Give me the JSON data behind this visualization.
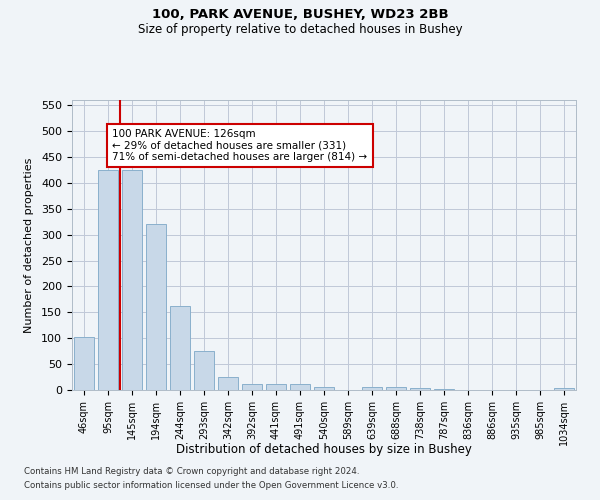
{
  "title1": "100, PARK AVENUE, BUSHEY, WD23 2BB",
  "title2": "Size of property relative to detached houses in Bushey",
  "xlabel": "Distribution of detached houses by size in Bushey",
  "ylabel": "Number of detached properties",
  "categories": [
    "46sqm",
    "95sqm",
    "145sqm",
    "194sqm",
    "244sqm",
    "293sqm",
    "342sqm",
    "392sqm",
    "441sqm",
    "491sqm",
    "540sqm",
    "589sqm",
    "639sqm",
    "688sqm",
    "738sqm",
    "787sqm",
    "836sqm",
    "886sqm",
    "935sqm",
    "985sqm",
    "1034sqm"
  ],
  "values": [
    103,
    425,
    425,
    320,
    163,
    75,
    25,
    11,
    11,
    11,
    6,
    0,
    5,
    5,
    3,
    1,
    0,
    0,
    0,
    0,
    4
  ],
  "bar_color": "#c8d8e8",
  "bar_edge_color": "#8ab0cc",
  "red_line_x": 1.5,
  "annotation_text": "100 PARK AVENUE: 126sqm\n← 29% of detached houses are smaller (331)\n71% of semi-detached houses are larger (814) →",
  "annotation_box_color": "#ffffff",
  "annotation_box_edge": "#cc0000",
  "red_line_color": "#cc0000",
  "grid_color": "#c0c8d8",
  "ylim": [
    0,
    560
  ],
  "yticks": [
    0,
    50,
    100,
    150,
    200,
    250,
    300,
    350,
    400,
    450,
    500,
    550
  ],
  "footnote1": "Contains HM Land Registry data © Crown copyright and database right 2024.",
  "footnote2": "Contains public sector information licensed under the Open Government Licence v3.0.",
  "bg_color": "#f0f4f8"
}
